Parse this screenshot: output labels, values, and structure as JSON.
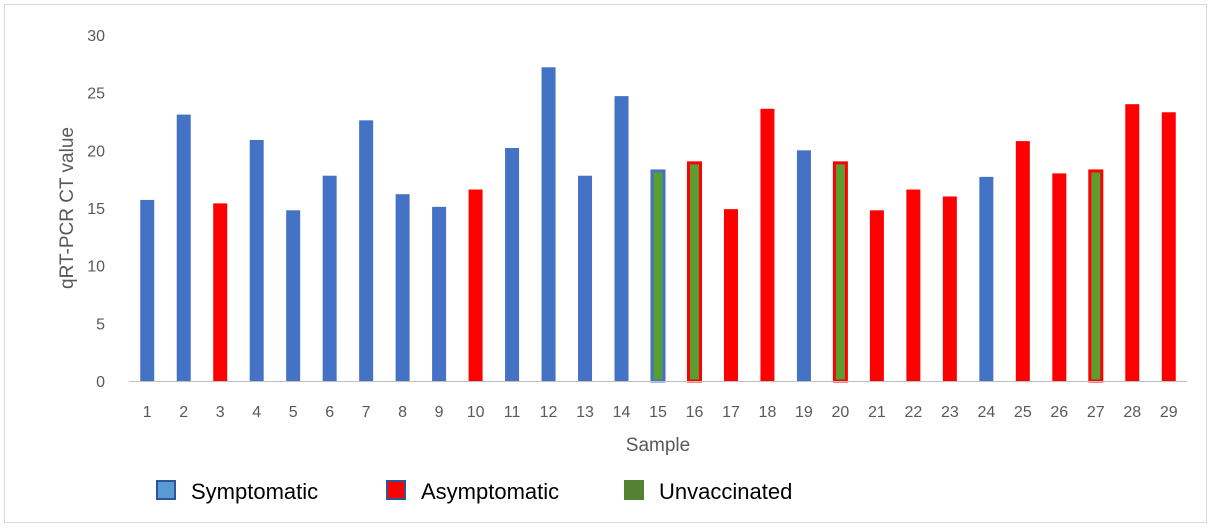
{
  "chart_data": {
    "type": "bar",
    "title": "",
    "xlabel": "Sample",
    "ylabel": "qRT-PCR CT value",
    "ylim": [
      0,
      30
    ],
    "yticks": [
      0,
      5,
      10,
      15,
      20,
      25,
      30
    ],
    "grid": false,
    "legend_position": "bottom",
    "categories": [
      "1",
      "2",
      "3",
      "4",
      "5",
      "6",
      "7",
      "8",
      "9",
      "10",
      "11",
      "12",
      "13",
      "14",
      "15",
      "16",
      "17",
      "18",
      "19",
      "20",
      "21",
      "22",
      "23",
      "24",
      "25",
      "26",
      "27",
      "28",
      "29"
    ],
    "values": [
      15.7,
      23.1,
      15.4,
      20.9,
      14.8,
      17.8,
      22.6,
      16.2,
      15.1,
      16.6,
      20.2,
      27.2,
      17.8,
      24.7,
      18.3,
      19.0,
      14.9,
      23.6,
      20.0,
      19.0,
      14.8,
      16.6,
      16.0,
      17.7,
      20.8,
      18.0,
      18.3,
      24.0,
      23.3
    ],
    "group": [
      "Symptomatic",
      "Symptomatic",
      "Asymptomatic",
      "Symptomatic",
      "Symptomatic",
      "Symptomatic",
      "Symptomatic",
      "Symptomatic",
      "Symptomatic",
      "Asymptomatic",
      "Symptomatic",
      "Symptomatic",
      "Symptomatic",
      "Symptomatic",
      "Symptomatic",
      "Asymptomatic",
      "Asymptomatic",
      "Asymptomatic",
      "Symptomatic",
      "Asymptomatic",
      "Asymptomatic",
      "Asymptomatic",
      "Asymptomatic",
      "Symptomatic",
      "Asymptomatic",
      "Asymptomatic",
      "Asymptomatic",
      "Asymptomatic",
      "Asymptomatic"
    ],
    "unvaccinated": [
      false,
      false,
      false,
      false,
      false,
      false,
      false,
      false,
      false,
      false,
      false,
      false,
      false,
      false,
      true,
      true,
      false,
      false,
      false,
      true,
      false,
      false,
      false,
      false,
      false,
      false,
      true,
      false,
      false
    ],
    "legend": [
      {
        "label": "Symptomatic",
        "fill": "#5b9bd5",
        "stroke": "#2f5597"
      },
      {
        "label": "Asymptomatic",
        "fill": "#ff0000",
        "stroke": "#2f5597"
      },
      {
        "label": "Unvaccinated",
        "fill": "#548235",
        "stroke": "#548235"
      }
    ],
    "colors": {
      "Symptomatic": "#4472c4",
      "Asymptomatic": "#ff0000",
      "Unvaccinated": "#5a9e32",
      "axis": "#bfbfbf"
    }
  }
}
